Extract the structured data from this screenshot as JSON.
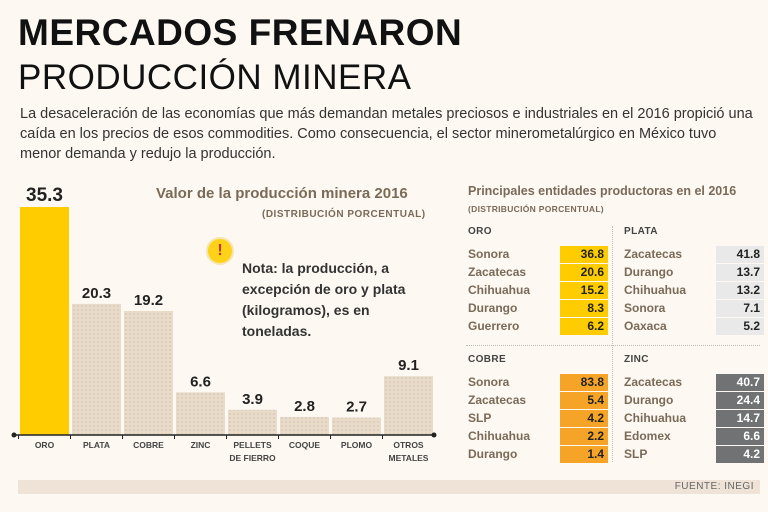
{
  "header": {
    "title": "MERCADOS FRENARON",
    "subtitle": "PRODUCCIÓN MINERA",
    "intro": "La desaceleración de las economías que más demandan metales preciosos e industriales en el 2016 propició una caída en los precios de esos commodities. Como consecuencia, el sector minerometalúrgico en México tuvo menor demanda y redujo la producción."
  },
  "chart_data": {
    "type": "bar",
    "title": "Valor de la producción minera 2016",
    "subtitle": "(DISTRIBUCIÓN PORCENTUAL)",
    "categories": [
      "ORO",
      "PLATA",
      "COBRE",
      "ZINC",
      "PELLETS DE FIERRO",
      "COQUE",
      "PLOMO",
      "OTROS METALES"
    ],
    "category_lines": [
      [
        "ORO"
      ],
      [
        "PLATA"
      ],
      [
        "COBRE"
      ],
      [
        "ZINC"
      ],
      [
        "PELLETS",
        "DE FIERRO"
      ],
      [
        "COQUE"
      ],
      [
        "PLOMO"
      ],
      [
        "OTROS",
        "METALES"
      ]
    ],
    "values": [
      35.3,
      20.3,
      19.2,
      6.6,
      3.9,
      2.8,
      2.7,
      9.1
    ],
    "value_labels": [
      "35.3",
      "20.3",
      "19.2",
      "6.6",
      "3.9",
      "2.8",
      "2.7",
      "9.1"
    ],
    "ylim": [
      0,
      35.3
    ],
    "colors": {
      "highlight": "#ffcc00",
      "bar": "#e8dbc9",
      "axis": "#222222"
    }
  },
  "note": {
    "icon": "exclamation-icon",
    "text": "Nota: la producción, a excepción de oro y plata (kilogramos), es en toneladas."
  },
  "states": {
    "title": "Principales entidades productoras en el 2016",
    "subtitle": "(DISTRIBUCIÓN PORCENTUAL)",
    "panels": [
      {
        "name": "ORO",
        "color": "#ffcc00",
        "text_color": "#222222",
        "rows": [
          {
            "state": "Sonora",
            "value": "36.8"
          },
          {
            "state": "Zacatecas",
            "value": "20.6"
          },
          {
            "state": "Chihuahua",
            "value": "15.2"
          },
          {
            "state": "Durango",
            "value": "8.3"
          },
          {
            "state": "Guerrero",
            "value": "6.2"
          }
        ]
      },
      {
        "name": "PLATA",
        "color": "#e9e9ea",
        "text_color": "#222222",
        "rows": [
          {
            "state": "Zacatecas",
            "value": "41.8"
          },
          {
            "state": "Durango",
            "value": "13.7"
          },
          {
            "state": "Chihuahua",
            "value": "13.2"
          },
          {
            "state": "Sonora",
            "value": "7.1"
          },
          {
            "state": "Oaxaca",
            "value": "5.2"
          }
        ]
      },
      {
        "name": "COBRE",
        "color": "#f5a428",
        "text_color": "#222222",
        "rows": [
          {
            "state": "Sonora",
            "value": "83.8"
          },
          {
            "state": "Zacatecas",
            "value": "5.4"
          },
          {
            "state": "SLP",
            "value": "4.2"
          },
          {
            "state": "Chihuahua",
            "value": "2.2"
          },
          {
            "state": "Durango",
            "value": "1.4"
          }
        ]
      },
      {
        "name": "ZINC",
        "color": "#707274",
        "text_color": "#ffffff",
        "rows": [
          {
            "state": "Zacatecas",
            "value": "40.7"
          },
          {
            "state": "Durango",
            "value": "24.4"
          },
          {
            "state": "Chihuahua",
            "value": "14.7"
          },
          {
            "state": "Edomex",
            "value": "6.6"
          },
          {
            "state": "SLP",
            "value": "4.2"
          }
        ]
      }
    ]
  },
  "footer": {
    "source": "FUENTE: INEGI"
  }
}
